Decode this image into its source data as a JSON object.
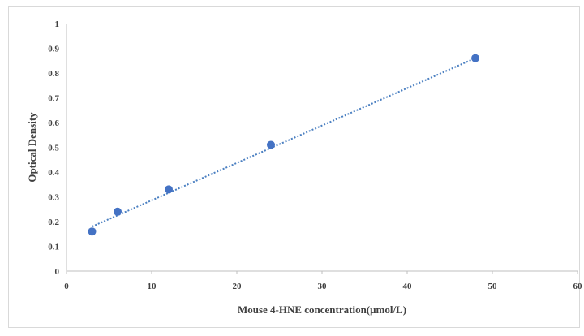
{
  "chart_data": {
    "type": "scatter",
    "xlabel": "Mouse 4-HNE concentration(μmol/L)",
    "ylabel": "Optical Density",
    "xlim": [
      0,
      60
    ],
    "ylim": [
      0,
      1
    ],
    "x_ticks": [
      0,
      10,
      20,
      30,
      40,
      50,
      60
    ],
    "y_ticks": [
      0,
      0.1,
      0.2,
      0.3,
      0.4,
      0.5,
      0.6,
      0.7,
      0.8,
      0.9,
      1
    ],
    "grid": false,
    "legend": "none",
    "series": [
      {
        "x": [
          3,
          6,
          12,
          24,
          48
        ],
        "y": [
          0.16,
          0.24,
          0.33,
          0.51,
          0.86
        ],
        "marker_color": "#4472c4"
      }
    ],
    "trendline": {
      "style": "dotted",
      "color": "#4a7fc1",
      "x": [
        3,
        48
      ],
      "y": [
        0.18,
        0.86
      ]
    }
  }
}
